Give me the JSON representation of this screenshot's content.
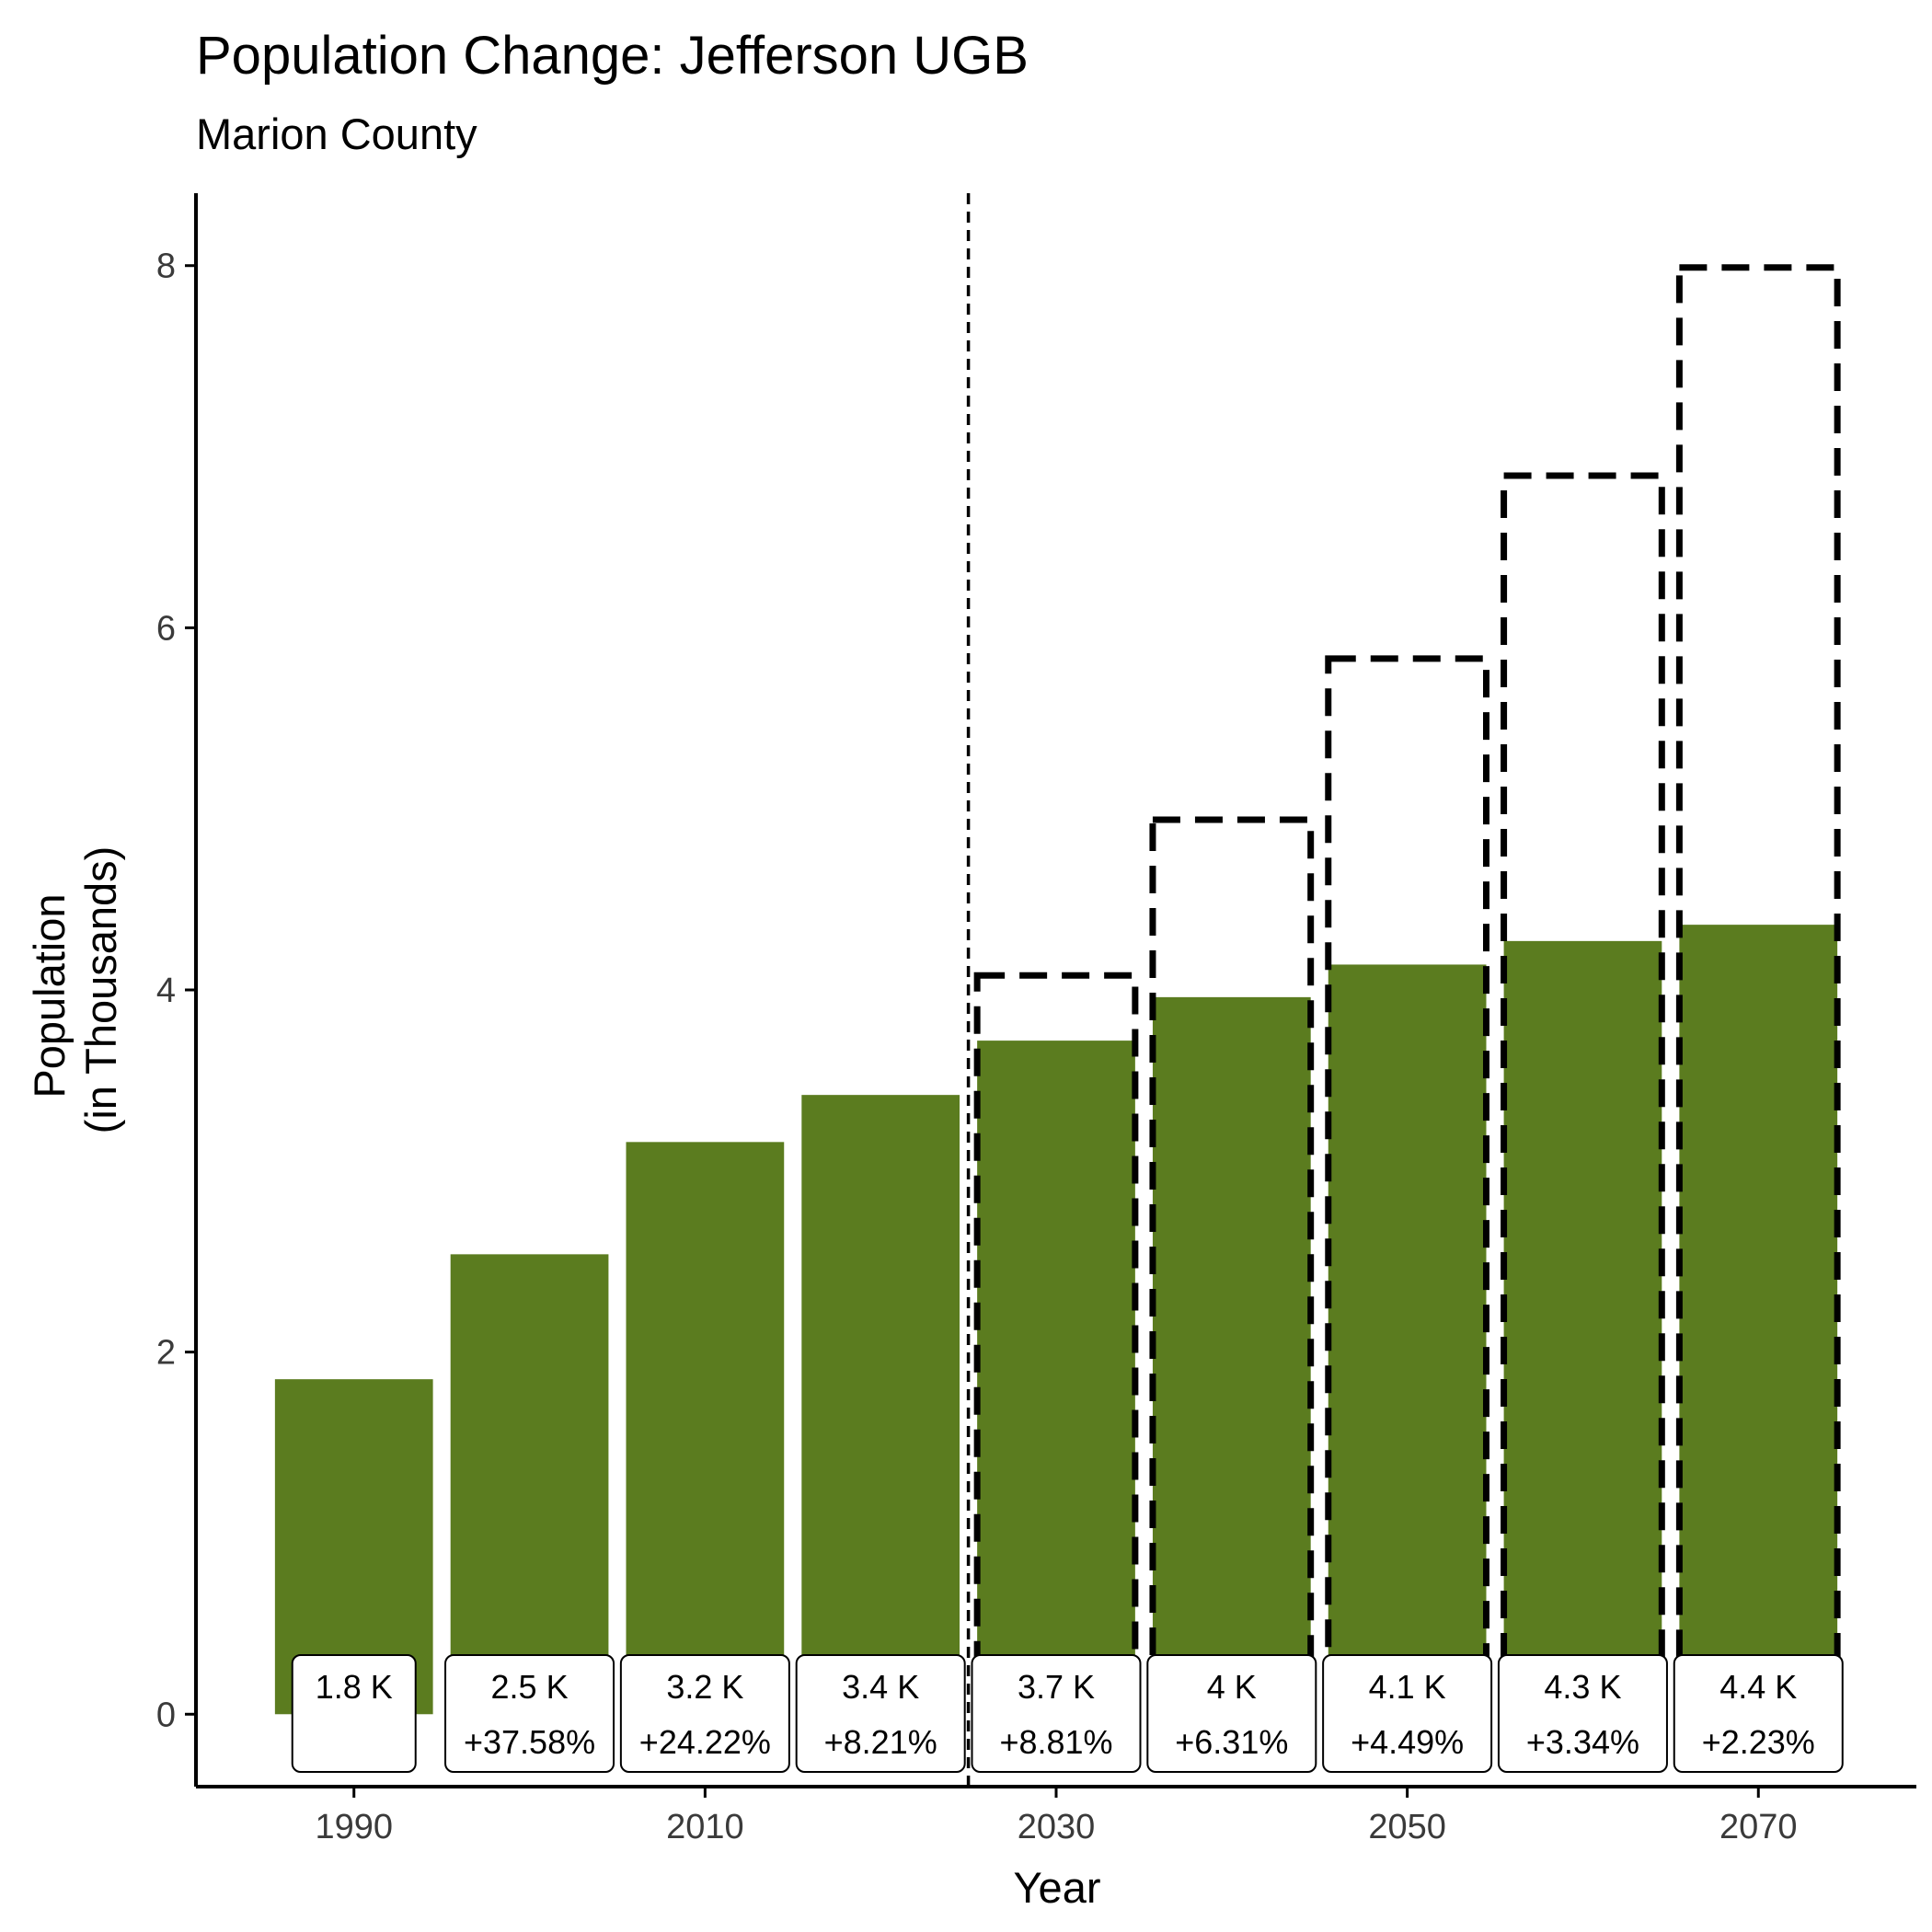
{
  "chart_data": {
    "type": "bar",
    "title": "Population Change: Jefferson UGB",
    "subtitle": "Marion County",
    "xlabel": "Year",
    "ylabel_lines": [
      "Population",
      "(in Thousands)"
    ],
    "xlim": [
      1981,
      2079
    ],
    "ylim": [
      -0.4,
      8.4
    ],
    "y_ticks": [
      0,
      2,
      4,
      6,
      8
    ],
    "x_ticks": [
      1990,
      2010,
      2030,
      2050,
      2070
    ],
    "bar_width_years": 9,
    "projection_start_year": 2025,
    "colors": {
      "bar_fill": "#5b7c1f",
      "dashed_outline": "#000000",
      "axis": "#000000",
      "label_box_fill": "#ffffff",
      "label_box_border": "#000000"
    },
    "series": [
      {
        "values": [
          {
            "x": 1990,
            "y": 1.85
          },
          {
            "x": 2000,
            "y": 2.54
          },
          {
            "x": 2010,
            "y": 3.16
          },
          {
            "x": 2020,
            "y": 3.42
          },
          {
            "x": 2030,
            "y": 3.72
          },
          {
            "x": 2040,
            "y": 3.96
          },
          {
            "x": 2050,
            "y": 4.14
          },
          {
            "x": 2060,
            "y": 4.27
          },
          {
            "x": 2070,
            "y": 4.36
          }
        ]
      },
      {
        "style": "dashed-outline",
        "values": [
          {
            "x": 2030,
            "y": 4.08
          },
          {
            "x": 2040,
            "y": 4.94
          },
          {
            "x": 2050,
            "y": 5.83
          },
          {
            "x": 2060,
            "y": 6.84
          },
          {
            "x": 2070,
            "y": 7.99
          }
        ]
      }
    ],
    "data_labels": [
      {
        "x": 1990,
        "value": "1.8 K",
        "change": ""
      },
      {
        "x": 2000,
        "value": "2.5 K",
        "change": "+37.58%"
      },
      {
        "x": 2010,
        "value": "3.2 K",
        "change": "+24.22%"
      },
      {
        "x": 2020,
        "value": "3.4 K",
        "change": "+8.21%"
      },
      {
        "x": 2030,
        "value": "3.7 K",
        "change": "+8.81%"
      },
      {
        "x": 2040,
        "value": "4 K",
        "change": "+6.31%"
      },
      {
        "x": 2050,
        "value": "4.1 K",
        "change": "+4.49%"
      },
      {
        "x": 2060,
        "value": "4.3 K",
        "change": "+3.34%"
      },
      {
        "x": 2070,
        "value": "4.4 K",
        "change": "+2.23%"
      }
    ]
  }
}
